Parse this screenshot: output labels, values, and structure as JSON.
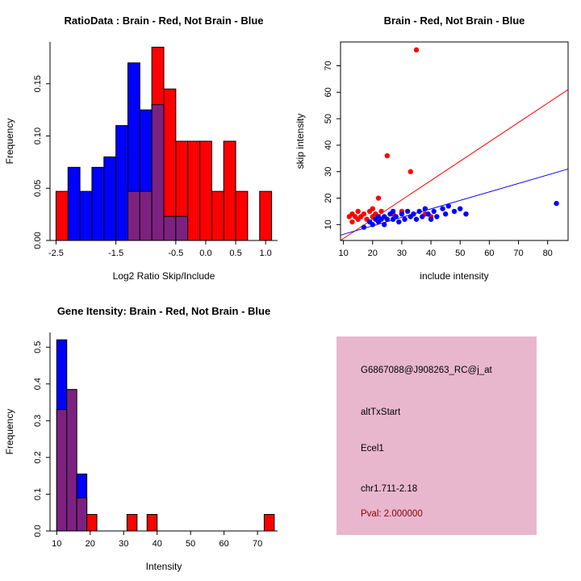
{
  "page": {
    "background": "#FFFFFF"
  },
  "chart_data": [
    {
      "type": "bar",
      "name": "ratio-histogram",
      "title": "RatioData : Brain - Red, Not Brain - Blue",
      "xlabel": "Log2 Ratio Skip/Include",
      "ylabel": "Frequency",
      "xlim": [
        -2.6,
        1.2
      ],
      "ylim": [
        0,
        0.19
      ],
      "xticks": [
        -2.5,
        -1.5,
        -0.5,
        0,
        0.5,
        1
      ],
      "xtick_labels": [
        "-2.5",
        "-1.5",
        "-0.5",
        "0.0",
        "0.5",
        "1.0"
      ],
      "yticks": [
        0,
        0.05,
        0.1,
        0.15
      ],
      "ytick_labels": [
        "0.00",
        "0.05",
        "0.10",
        "0.15"
      ],
      "bin_width": 0.2,
      "legend_note": "red = Brain, blue = Not Brain, purple = overlap",
      "colors": {
        "red": "#FF0000",
        "blue": "#0000FF",
        "overlap": "#7D2181"
      },
      "bars": [
        {
          "x": -2.5,
          "red": 0.047,
          "blue": 0
        },
        {
          "x": -2.3,
          "red": 0,
          "blue": 0.07
        },
        {
          "x": -2.1,
          "red": 0,
          "blue": 0.047
        },
        {
          "x": -1.9,
          "red": 0,
          "blue": 0.07
        },
        {
          "x": -1.7,
          "red": 0,
          "blue": 0.08
        },
        {
          "x": -1.5,
          "red": 0,
          "blue": 0.11
        },
        {
          "x": -1.3,
          "red": 0.047,
          "blue": 0.17
        },
        {
          "x": -1.1,
          "red": 0.047,
          "blue": 0.125
        },
        {
          "x": -0.9,
          "red": 0.185,
          "blue": 0.13
        },
        {
          "x": -0.7,
          "red": 0.145,
          "blue": 0.023
        },
        {
          "x": -0.5,
          "red": 0.095,
          "blue": 0.023
        },
        {
          "x": -0.3,
          "red": 0.095,
          "blue": 0
        },
        {
          "x": -0.1,
          "red": 0.095,
          "blue": 0
        },
        {
          "x": 0.1,
          "red": 0.047,
          "blue": 0
        },
        {
          "x": 0.3,
          "red": 0.095,
          "blue": 0
        },
        {
          "x": 0.5,
          "red": 0.047,
          "blue": 0
        },
        {
          "x": 0.9,
          "red": 0.047,
          "blue": 0
        }
      ]
    },
    {
      "type": "scatter",
      "name": "intensity-scatter",
      "title": "Brain - Red, Not Brain - Blue",
      "xlabel": "include intensity",
      "ylabel": "skip intensity",
      "xlim": [
        9,
        87
      ],
      "ylim": [
        4,
        79
      ],
      "xticks": [
        10,
        20,
        30,
        40,
        50,
        60,
        70,
        80
      ],
      "xtick_labels": [
        "10",
        "20",
        "30",
        "40",
        "50",
        "60",
        "70",
        "80"
      ],
      "yticks": [
        10,
        20,
        30,
        40,
        50,
        60,
        70
      ],
      "ytick_labels": [
        "10",
        "20",
        "30",
        "40",
        "50",
        "60",
        "70"
      ],
      "series": [
        {
          "name": "brain",
          "color": "#FF0000",
          "points": [
            [
              12,
              13
            ],
            [
              13,
              11
            ],
            [
              13,
              14
            ],
            [
              14,
              13
            ],
            [
              15,
              12
            ],
            [
              15,
              15
            ],
            [
              16,
              13
            ],
            [
              17,
              14
            ],
            [
              18,
              12
            ],
            [
              19,
              15
            ],
            [
              20,
              13
            ],
            [
              20,
              16
            ],
            [
              21,
              14
            ],
            [
              22,
              20
            ],
            [
              23,
              15
            ],
            [
              24,
              13
            ],
            [
              25,
              36
            ],
            [
              27,
              14
            ],
            [
              30,
              15
            ],
            [
              33,
              30
            ],
            [
              35,
              76
            ],
            [
              38,
              14
            ],
            [
              40,
              13
            ]
          ]
        },
        {
          "name": "not-brain",
          "color": "#0000FF",
          "points": [
            [
              17,
              9
            ],
            [
              19,
              11
            ],
            [
              20,
              10
            ],
            [
              21,
              12
            ],
            [
              22,
              11
            ],
            [
              22,
              13
            ],
            [
              23,
              12
            ],
            [
              24,
              10
            ],
            [
              24,
              13
            ],
            [
              25,
              12
            ],
            [
              26,
              14
            ],
            [
              27,
              12
            ],
            [
              27,
              15
            ],
            [
              28,
              13
            ],
            [
              29,
              11
            ],
            [
              30,
              14
            ],
            [
              31,
              12
            ],
            [
              32,
              15
            ],
            [
              33,
              13
            ],
            [
              34,
              14
            ],
            [
              35,
              12
            ],
            [
              36,
              15
            ],
            [
              37,
              13
            ],
            [
              38,
              16
            ],
            [
              39,
              14
            ],
            [
              40,
              12
            ],
            [
              41,
              15
            ],
            [
              42,
              13
            ],
            [
              44,
              16
            ],
            [
              45,
              14
            ],
            [
              46,
              17
            ],
            [
              48,
              15
            ],
            [
              50,
              16
            ],
            [
              52,
              14
            ],
            [
              83,
              18
            ]
          ]
        }
      ],
      "lines": [
        {
          "name": "brain-fit-line",
          "color": "#FF0000",
          "x1": 9,
          "y1": 4,
          "x2": 87,
          "y2": 61
        },
        {
          "name": "not-brain-fit-line",
          "color": "#0000FF",
          "x1": 9,
          "y1": 6,
          "x2": 87,
          "y2": 31
        }
      ]
    },
    {
      "type": "bar",
      "name": "gene-intensity-histogram",
      "title": "Gene Itensity: Brain - Red, Not Brain - Blue",
      "xlabel": "Intensity",
      "ylabel": "Frequency",
      "xlim": [
        8,
        76
      ],
      "ylim": [
        0,
        0.54
      ],
      "xticks": [
        10,
        20,
        30,
        40,
        50,
        60,
        70
      ],
      "xtick_labels": [
        "10",
        "20",
        "30",
        "40",
        "50",
        "60",
        "70"
      ],
      "yticks": [
        0,
        0.1,
        0.2,
        0.3,
        0.4,
        0.5
      ],
      "ytick_labels": [
        "0.0",
        "0.1",
        "0.2",
        "0.3",
        "0.4",
        "0.5"
      ],
      "bin_width": 3,
      "legend_note": "red = Brain, blue = Not Brain, purple = overlap",
      "colors": {
        "red": "#FF0000",
        "blue": "#0000FF",
        "overlap": "#7D2181"
      },
      "bars": [
        {
          "x": 10,
          "red": 0.33,
          "blue": 0.52
        },
        {
          "x": 13,
          "red": 0.385,
          "blue": 0.385
        },
        {
          "x": 16,
          "red": 0.09,
          "blue": 0.155
        },
        {
          "x": 19,
          "red": 0.045,
          "blue": 0
        },
        {
          "x": 31,
          "red": 0.045,
          "blue": 0
        },
        {
          "x": 37,
          "red": 0.045,
          "blue": 0
        },
        {
          "x": 72,
          "red": 0.045,
          "blue": 0
        }
      ]
    }
  ],
  "info_panel": {
    "background": "#E8B7CE",
    "lines": [
      {
        "text": "G6867088@J908263_RC@j_at",
        "color": "#000000"
      },
      {
        "text": "altTxStart",
        "color": "#000000"
      },
      {
        "text": "Ecel1",
        "color": "#000000"
      },
      {
        "text": "chr1.711-2.18",
        "color": "#000000"
      },
      {
        "text": "Pval: 2.000000",
        "color": "#8B0000"
      }
    ]
  }
}
